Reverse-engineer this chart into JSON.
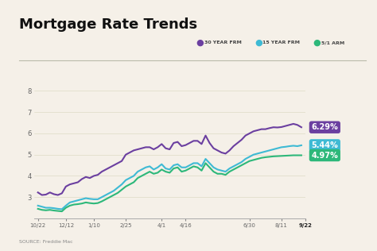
{
  "title": "Mortgage Rate Trends",
  "source": "SOURCE: Freddie Mac",
  "background_color": "#f5f0e8",
  "x_labels": [
    "10/22",
    "12/12",
    "1/10",
    "2/25",
    "4/1",
    "4/16",
    "6/30",
    "8/11",
    "9/22"
  ],
  "x_positions": [
    0,
    7,
    14,
    22,
    31,
    37,
    53,
    61,
    67
  ],
  "ylim": [
    2,
    8.5
  ],
  "yticks": [
    3,
    4,
    5,
    6,
    7,
    8
  ],
  "series_30yr": {
    "label": "30 YEAR FRM",
    "color": "#6b3fa0",
    "end_value": "6.29%",
    "values": [
      3.22,
      3.1,
      3.12,
      3.22,
      3.14,
      3.1,
      3.18,
      3.5,
      3.6,
      3.65,
      3.7,
      3.85,
      3.95,
      3.9,
      4.0,
      4.05,
      4.2,
      4.3,
      4.4,
      4.5,
      4.6,
      4.7,
      5.0,
      5.1,
      5.2,
      5.25,
      5.3,
      5.35,
      5.35,
      5.25,
      5.35,
      5.5,
      5.3,
      5.25,
      5.55,
      5.6,
      5.4,
      5.45,
      5.55,
      5.65,
      5.65,
      5.5,
      5.9,
      5.55,
      5.3,
      5.2,
      5.1,
      5.05,
      5.2,
      5.4,
      5.55,
      5.7,
      5.9,
      6.0,
      6.1,
      6.15,
      6.2,
      6.2,
      6.25,
      6.29,
      6.28,
      6.3,
      6.35,
      6.4,
      6.45,
      6.4,
      6.29
    ]
  },
  "series_15yr": {
    "label": "15 YEAR FRM",
    "color": "#3ebad4",
    "end_value": "5.44%",
    "values": [
      2.6,
      2.55,
      2.5,
      2.5,
      2.48,
      2.45,
      2.43,
      2.6,
      2.75,
      2.8,
      2.85,
      2.9,
      2.95,
      2.92,
      2.9,
      2.9,
      3.0,
      3.1,
      3.2,
      3.3,
      3.45,
      3.6,
      3.8,
      3.9,
      4.0,
      4.2,
      4.3,
      4.4,
      4.45,
      4.3,
      4.4,
      4.55,
      4.35,
      4.3,
      4.5,
      4.55,
      4.4,
      4.4,
      4.5,
      4.6,
      4.6,
      4.45,
      4.8,
      4.6,
      4.4,
      4.3,
      4.25,
      4.2,
      4.35,
      4.45,
      4.55,
      4.65,
      4.8,
      4.9,
      5.0,
      5.05,
      5.1,
      5.15,
      5.2,
      5.25,
      5.3,
      5.35,
      5.37,
      5.4,
      5.42,
      5.4,
      5.44
    ]
  },
  "series_arm": {
    "label": "5/1 ARM",
    "color": "#2db87a",
    "end_value": "4.97%",
    "values": [
      2.45,
      2.4,
      2.38,
      2.4,
      2.37,
      2.35,
      2.33,
      2.5,
      2.6,
      2.65,
      2.67,
      2.7,
      2.75,
      2.72,
      2.7,
      2.72,
      2.8,
      2.9,
      3.0,
      3.1,
      3.2,
      3.35,
      3.5,
      3.6,
      3.7,
      3.9,
      4.0,
      4.1,
      4.2,
      4.1,
      4.15,
      4.3,
      4.2,
      4.15,
      4.35,
      4.4,
      4.2,
      4.25,
      4.35,
      4.45,
      4.4,
      4.25,
      4.6,
      4.4,
      4.2,
      4.1,
      4.1,
      4.05,
      4.2,
      4.3,
      4.4,
      4.5,
      4.6,
      4.7,
      4.75,
      4.8,
      4.85,
      4.88,
      4.9,
      4.92,
      4.93,
      4.94,
      4.95,
      4.96,
      4.97,
      4.97,
      4.97
    ]
  }
}
